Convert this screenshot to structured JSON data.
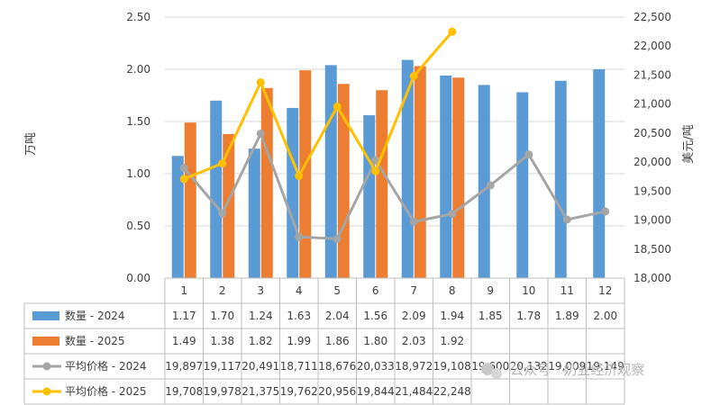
{
  "chart_data": {
    "type": "bar",
    "categories": [
      "1",
      "2",
      "3",
      "4",
      "5",
      "6",
      "7",
      "8",
      "9",
      "10",
      "11",
      "12"
    ],
    "ylabel": "万吨",
    "y2label": "美元/吨",
    "ylim": [
      0,
      2.5
    ],
    "y2lim": [
      18000,
      22500
    ],
    "yticks": [
      "0.00",
      "0.50",
      "1.00",
      "1.50",
      "2.00",
      "2.50"
    ],
    "y2ticks": [
      "18,000",
      "18,500",
      "19,000",
      "19,500",
      "20,000",
      "20,500",
      "21,000",
      "21,500",
      "22,000",
      "22,500"
    ],
    "grid": true,
    "legend": "data-table",
    "series": [
      {
        "name": "数量 - 2024",
        "kind": "bar",
        "axis": "left",
        "color": "#5b9bd5",
        "values": [
          1.17,
          1.7,
          1.24,
          1.63,
          2.04,
          1.56,
          2.09,
          1.94,
          1.85,
          1.78,
          1.89,
          2.0
        ],
        "labels": [
          "1.17",
          "1.70",
          "1.24",
          "1.63",
          "2.04",
          "1.56",
          "2.09",
          "1.94",
          "1.85",
          "1.78",
          "1.89",
          "2.00"
        ]
      },
      {
        "name": "数量 - 2025",
        "kind": "bar",
        "axis": "left",
        "color": "#ed7d31",
        "values": [
          1.49,
          1.38,
          1.82,
          1.99,
          1.86,
          1.8,
          2.03,
          1.92,
          null,
          null,
          null,
          null
        ],
        "labels": [
          "1.49",
          "1.38",
          "1.82",
          "1.99",
          "1.86",
          "1.80",
          "2.03",
          "1.92",
          "",
          "",
          "",
          ""
        ]
      },
      {
        "name": "平均价格 - 2024",
        "kind": "line",
        "axis": "right",
        "color": "#a5a5a5",
        "values": [
          19897,
          19117,
          20491,
          18711,
          18676,
          20033,
          18972,
          19108,
          19600,
          20132,
          19009,
          19149
        ],
        "labels": [
          "19,897",
          "19,117",
          "20,491",
          "18,711",
          "18,676",
          "20,033",
          "18,972",
          "19,108",
          "19,600",
          "20,132",
          "19,009",
          "19,149"
        ]
      },
      {
        "name": "平均价格 - 2025",
        "kind": "line",
        "axis": "right",
        "color": "#ffc000",
        "values": [
          19708,
          19978,
          21375,
          19762,
          20956,
          19844,
          21484,
          22248,
          null,
          null,
          null,
          null
        ],
        "labels": [
          "19,708",
          "19,978",
          "21,375",
          "19,762",
          "20,956",
          "19,844",
          "21,484",
          "22,248",
          "",
          "",
          "",
          ""
        ]
      }
    ]
  },
  "watermark": {
    "text": "公众号 · 奶业经济观察"
  }
}
